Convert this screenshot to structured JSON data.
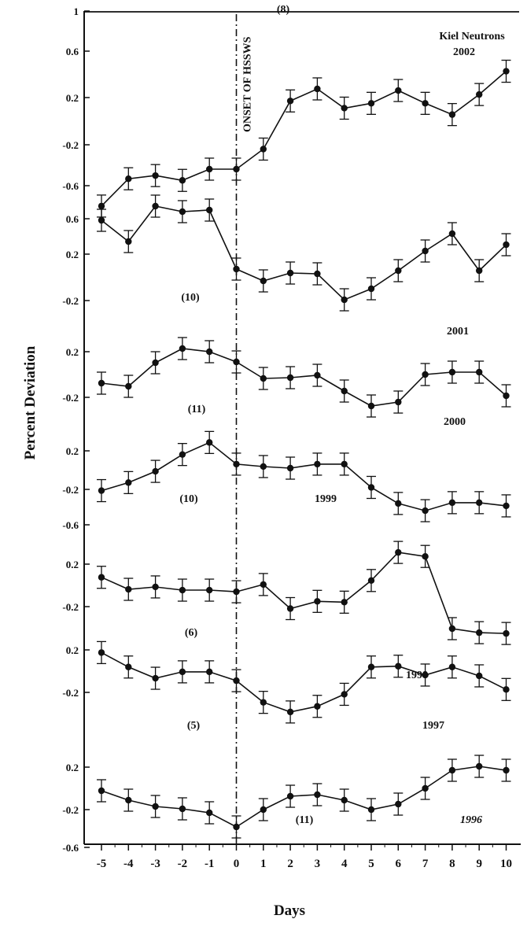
{
  "chart_data": {
    "type": "line",
    "title": "Kiel Neutrons",
    "xlabel": "Days",
    "ylabel": "Percent  Deviation",
    "x": [
      -5,
      -4,
      -3,
      -2,
      -1,
      0,
      1,
      2,
      3,
      4,
      5,
      6,
      7,
      8,
      9,
      10
    ],
    "x_tick_labels": [
      "-5",
      "-4",
      "-3",
      "-2",
      "-1",
      "0",
      "1",
      "2",
      "3",
      "4",
      "5",
      "6",
      "7",
      "8",
      "9",
      "10"
    ],
    "onset_label": "ONSET OF HSSWS",
    "onset_day": 0,
    "grid": false,
    "error_bars": true,
    "panel_y_ticks": [
      {
        "panel": "2002",
        "labels": [
          "1",
          "0.6",
          "0.2",
          "-0.2",
          "-0.6"
        ]
      },
      {
        "panel": "2001",
        "labels": [
          "0.6",
          "0.2",
          "-0.2"
        ]
      },
      {
        "panel": "2000",
        "labels": [
          "0.2",
          "-0.2"
        ]
      },
      {
        "panel": "1999",
        "labels": [
          "0.2",
          "-0.2",
          "-0.6"
        ]
      },
      {
        "panel": "1998",
        "labels": [
          "0.2",
          "-0.2"
        ]
      },
      {
        "panel": "1997",
        "labels": [
          "0.2",
          "-0.2"
        ]
      },
      {
        "panel": "1996",
        "labels": [
          "0.2",
          "-0.2",
          "-0.6"
        ]
      }
    ],
    "series": [
      {
        "name": "2002",
        "count": "(8)",
        "values": [
          -0.95,
          -0.61,
          -0.57,
          -0.63,
          -0.49,
          -0.49,
          -0.24,
          0.36,
          0.51,
          0.27,
          0.33,
          0.49,
          0.33,
          0.19,
          0.44,
          0.73
        ]
      },
      {
        "name": "2001",
        "count": "(10)",
        "values": [
          0.48,
          0.21,
          0.66,
          0.59,
          0.61,
          -0.14,
          -0.29,
          -0.19,
          -0.2,
          -0.53,
          -0.39,
          -0.16,
          0.09,
          0.31,
          -0.16,
          0.17
        ]
      },
      {
        "name": "2000",
        "count": "(11)",
        "values": [
          -0.22,
          -0.26,
          0.04,
          0.22,
          0.18,
          0.05,
          -0.16,
          -0.15,
          -0.12,
          -0.32,
          -0.51,
          -0.46,
          -0.11,
          -0.08,
          -0.08,
          -0.38
        ]
      },
      {
        "name": "1999",
        "count": "(10)",
        "values": [
          -0.28,
          -0.18,
          -0.04,
          0.17,
          0.32,
          0.05,
          0.02,
          0.0,
          0.05,
          0.05,
          -0.24,
          -0.44,
          -0.53,
          -0.43,
          -0.43,
          -0.47
        ]
      },
      {
        "name": "1998",
        "count": "(6)",
        "values": [
          0.14,
          -0.01,
          0.02,
          -0.02,
          -0.02,
          -0.04,
          0.05,
          -0.25,
          -0.16,
          -0.17,
          0.1,
          0.45,
          0.4,
          -0.5,
          -0.55,
          -0.56
        ]
      },
      {
        "name": "1997",
        "count": "(5)",
        "values": [
          0.3,
          0.12,
          -0.02,
          0.06,
          0.06,
          -0.05,
          -0.32,
          -0.44,
          -0.37,
          -0.22,
          0.12,
          0.13,
          0.02,
          0.12,
          0.01,
          -0.16
        ]
      },
      {
        "name": "1996",
        "count": "(11)",
        "values": [
          -0.05,
          -0.17,
          -0.25,
          -0.28,
          -0.33,
          -0.51,
          -0.29,
          -0.12,
          -0.1,
          -0.17,
          -0.29,
          -0.22,
          -0.02,
          0.21,
          0.26,
          0.21
        ]
      }
    ]
  }
}
